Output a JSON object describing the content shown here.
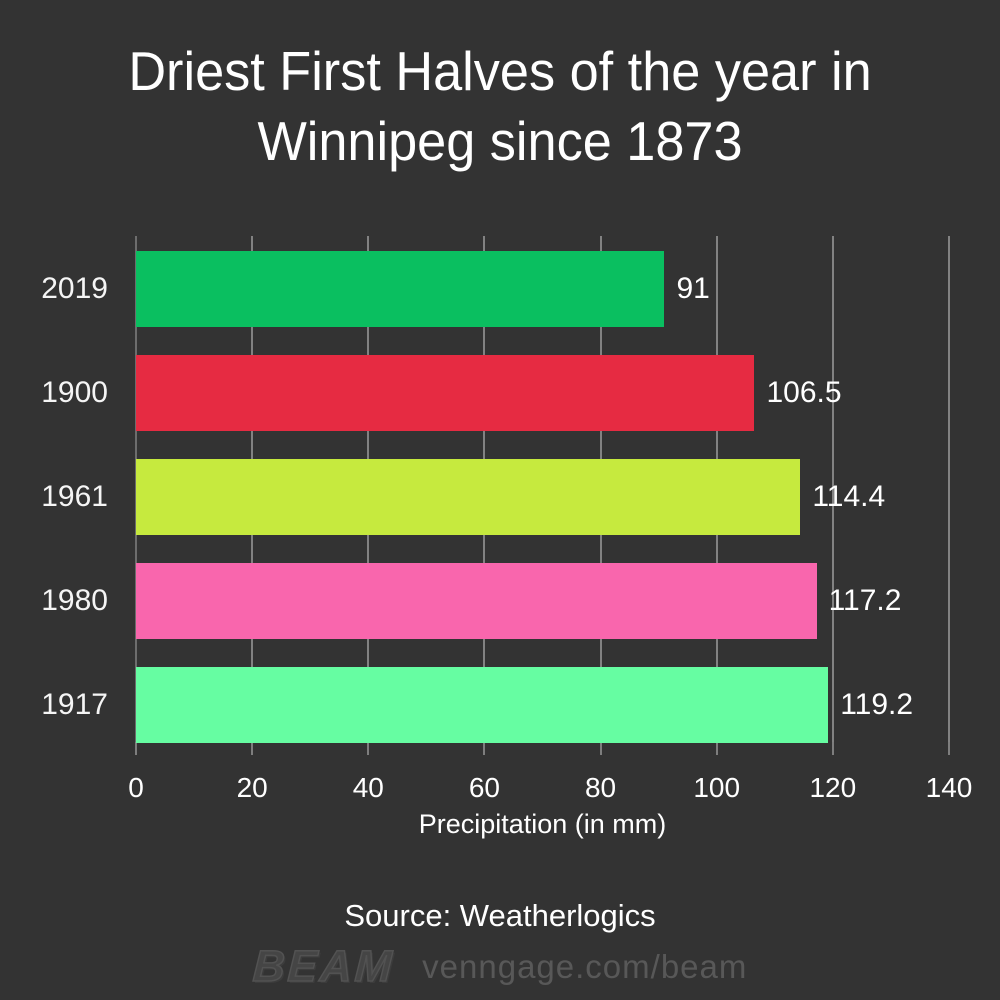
{
  "title": {
    "line1": "Driest First Halves of the year in",
    "line2": "Winnipeg since 1873"
  },
  "chart_data": {
    "type": "bar",
    "orientation": "horizontal",
    "title": "Driest First Halves of the year in Winnipeg since 1873",
    "categories": [
      "2019",
      "1900",
      "1961",
      "1980",
      "1917"
    ],
    "values": [
      91,
      106.5,
      114.4,
      117.2,
      119.2
    ],
    "value_labels": [
      "91",
      "106.5",
      "114.4",
      "117.2",
      "119.2"
    ],
    "bar_colors": [
      "#0abf60",
      "#e62b42",
      "#c6ea3e",
      "#f966ad",
      "#66fda2"
    ],
    "x_ticks": [
      "0",
      "20",
      "40",
      "60",
      "80",
      "100",
      "120",
      "140"
    ],
    "x_tick_values": [
      0,
      20,
      40,
      60,
      80,
      100,
      120,
      140
    ],
    "xlim": [
      0,
      140
    ],
    "xlabel": "Precipitation (in mm)",
    "ylabel": "",
    "grid": true,
    "legend": "none"
  },
  "colors": {
    "background": "#333333",
    "gridline": "#828282",
    "axis_line": "#6d6d6d",
    "tick": "#7e7e7e",
    "text": "#ffffff",
    "brand": "#454545",
    "brand_url": "#585858"
  },
  "footer": {
    "source": "Source: Weatherlogics",
    "brand": "BEAM",
    "brand_url": "venngage.com/beam"
  }
}
